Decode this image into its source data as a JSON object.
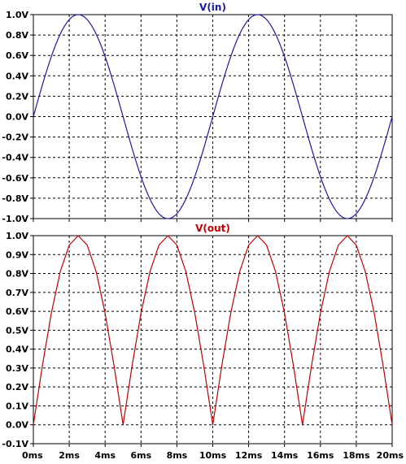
{
  "chart_data": [
    {
      "type": "line",
      "title": "V(in)",
      "xlabel": "",
      "ylabel": "",
      "xlim": [
        0,
        20
      ],
      "ylim": [
        -1.0,
        1.0
      ],
      "x_ticks": [
        "0ms",
        "2ms",
        "4ms",
        "6ms",
        "8ms",
        "10ms",
        "12ms",
        "14ms",
        "16ms",
        "18ms",
        "20ms"
      ],
      "y_ticks": [
        "-1.0V",
        "-0.8V",
        "-0.6V",
        "-0.4V",
        "-0.2V",
        "0.0V",
        "0.2V",
        "0.4V",
        "0.6V",
        "0.8V",
        "1.0V"
      ],
      "grid": true,
      "color": "#1a1aa0",
      "series": [
        {
          "name": "V(in)",
          "x": [
            0,
            0.5,
            1,
            1.5,
            2,
            2.5,
            3,
            3.5,
            4,
            4.5,
            5,
            5.5,
            6,
            6.5,
            7,
            7.5,
            8,
            8.5,
            9,
            9.5,
            10,
            10.5,
            11,
            11.5,
            12,
            12.5,
            13,
            13.5,
            14,
            14.5,
            15,
            15.5,
            16,
            16.5,
            17,
            17.5,
            18,
            18.5,
            19,
            19.5,
            20
          ],
          "values": [
            0,
            0.31,
            0.59,
            0.81,
            0.95,
            1.0,
            0.95,
            0.81,
            0.59,
            0.31,
            0,
            -0.31,
            -0.59,
            -0.81,
            -0.95,
            -1.0,
            -0.95,
            -0.81,
            -0.59,
            -0.31,
            0,
            0.31,
            0.59,
            0.81,
            0.95,
            1.0,
            0.95,
            0.81,
            0.59,
            0.31,
            0,
            -0.31,
            -0.59,
            -0.81,
            -0.95,
            -1.0,
            -0.95,
            -0.81,
            -0.59,
            -0.31,
            0
          ]
        }
      ]
    },
    {
      "type": "line",
      "title": "V(out)",
      "xlabel": "",
      "ylabel": "",
      "xlim": [
        0,
        20
      ],
      "ylim": [
        -0.1,
        1.0
      ],
      "x_ticks": [
        "0ms",
        "2ms",
        "4ms",
        "6ms",
        "8ms",
        "10ms",
        "12ms",
        "14ms",
        "16ms",
        "18ms",
        "20ms"
      ],
      "y_ticks": [
        "-0.1V",
        "0.0V",
        "0.1V",
        "0.2V",
        "0.3V",
        "0.4V",
        "0.5V",
        "0.6V",
        "0.7V",
        "0.8V",
        "0.9V",
        "1.0V"
      ],
      "grid": true,
      "color": "#c00000",
      "series": [
        {
          "name": "V(out)",
          "x": [
            0,
            0.5,
            1,
            1.5,
            2,
            2.5,
            3,
            3.5,
            4,
            4.5,
            5,
            5.5,
            6,
            6.5,
            7,
            7.5,
            8,
            8.5,
            9,
            9.5,
            10,
            10.5,
            11,
            11.5,
            12,
            12.5,
            13,
            13.5,
            14,
            14.5,
            15,
            15.5,
            16,
            16.5,
            17,
            17.5,
            18,
            18.5,
            19,
            19.5,
            20
          ],
          "values": [
            0,
            0.31,
            0.59,
            0.81,
            0.95,
            1.0,
            0.95,
            0.81,
            0.59,
            0.31,
            0,
            0.31,
            0.59,
            0.81,
            0.95,
            1.0,
            0.95,
            0.81,
            0.59,
            0.31,
            0,
            0.31,
            0.59,
            0.81,
            0.95,
            1.0,
            0.95,
            0.81,
            0.59,
            0.31,
            0,
            0.31,
            0.59,
            0.81,
            0.95,
            1.0,
            0.95,
            0.81,
            0.59,
            0.31,
            0
          ]
        }
      ]
    }
  ]
}
